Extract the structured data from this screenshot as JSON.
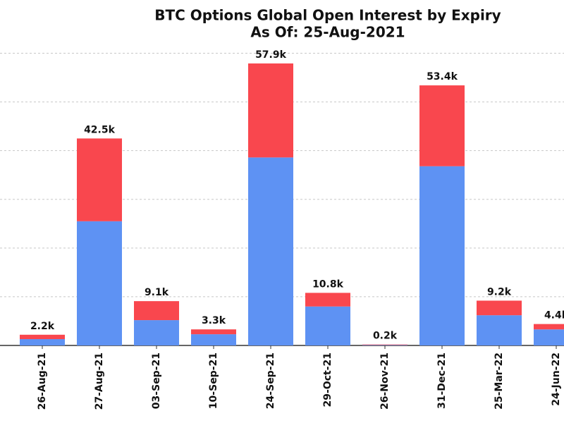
{
  "chart_data": {
    "type": "stacked_bar",
    "title": "BTC Options Global Open Interest by Expiry",
    "subtitle": "As Of: 25-Aug-2021",
    "categories": [
      "26-Aug-21",
      "27-Aug-21",
      "03-Sep-21",
      "10-Sep-21",
      "24-Sep-21",
      "29-Oct-21",
      "26-Nov-21",
      "31-Dec-21",
      "25-Mar-22",
      "24-Jun-22"
    ],
    "series": [
      {
        "color": "#5e92f3",
        "values": [
          1300,
          25500,
          5200,
          2300,
          38600,
          8000,
          100,
          36800,
          6200,
          3300
        ]
      },
      {
        "color": "#f9474e",
        "values": [
          900,
          17000,
          3900,
          1000,
          19300,
          2800,
          100,
          16600,
          3000,
          1100
        ]
      }
    ],
    "value_labels": [
      "2.2k",
      "42.5k",
      "9.1k",
      "3.3k",
      "57.9k",
      "10.8k",
      "0.2k",
      "53.4k",
      "9.2k",
      "4.4k"
    ],
    "ylim": [
      0,
      60000
    ],
    "yticks": [
      0,
      10000,
      20000,
      30000,
      40000,
      50000,
      60000
    ],
    "grid": true
  }
}
